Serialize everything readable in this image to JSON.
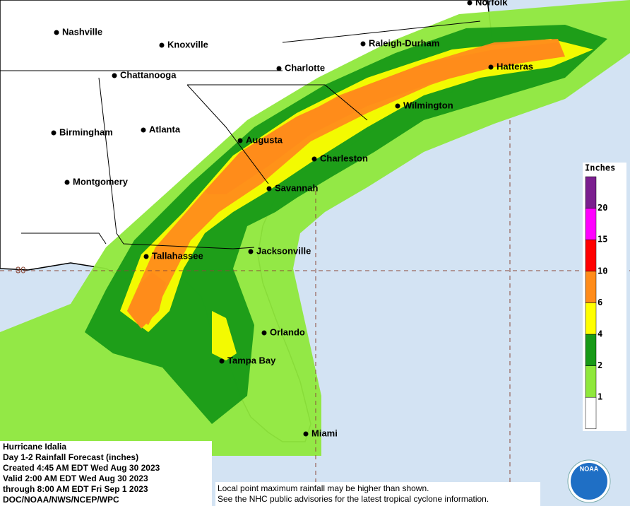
{
  "map": {
    "cities": [
      "Norfolk",
      "Nashville",
      "Knoxville",
      "Raleigh-Durham",
      "Chattanooga",
      "Charlotte",
      "Hatteras",
      "Wilmington",
      "Birmingham",
      "Atlanta",
      "Augusta",
      "Charleston",
      "Montgomery",
      "Savannah",
      "Tallahassee",
      "Jacksonville",
      "Orlando",
      "Tampa Bay",
      "Miami"
    ],
    "latitude_label": "30",
    "legend": {
      "title": "Inches",
      "ticks": [
        "1",
        "2",
        "4",
        "6",
        "10",
        "15",
        "20"
      ],
      "colors": [
        "#ffffff",
        "#8fe83c",
        "#179a17",
        "#ffff00",
        "#ff8c1a",
        "#ff0000",
        "#ff00ff",
        "#7b1f8f"
      ]
    },
    "info": [
      "Hurricane Idalia",
      "Day 1-2 Rainfall Forecast (inches)",
      "Created 4:45 AM EDT Wed Aug 30 2023",
      "Valid 2:00 AM EDT Wed Aug 30 2023",
      "through 8:00 AM EDT Fri Sep 1 2023",
      "DOC/NOAA/NWS/NCEP/WPC"
    ],
    "disclaimer": [
      "Local point maximum rainfall may be higher than shown.",
      "See the NHC public advisories for the latest tropical cyclone information."
    ],
    "logo": "NOAA"
  }
}
